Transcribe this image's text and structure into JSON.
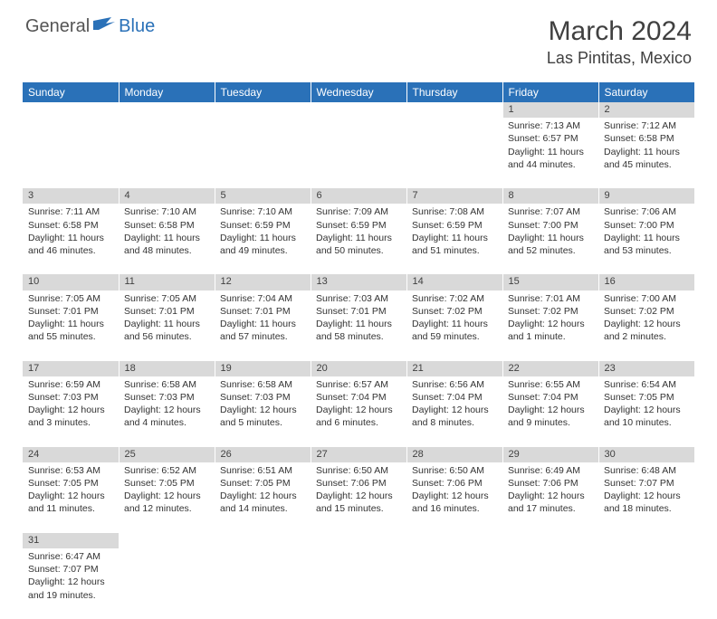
{
  "brand": {
    "part1": "General",
    "part2": "Blue"
  },
  "title": "March 2024",
  "location": "Las Pintitas, Mexico",
  "colors": {
    "header_bg": "#2a71b8",
    "header_text": "#ffffff",
    "daynum_bg": "#d9d9d9",
    "text": "#333333",
    "title_text": "#404040"
  },
  "dayHeaders": [
    "Sunday",
    "Monday",
    "Tuesday",
    "Wednesday",
    "Thursday",
    "Friday",
    "Saturday"
  ],
  "weeks": [
    [
      null,
      null,
      null,
      null,
      null,
      {
        "n": "1",
        "sr": "Sunrise: 7:13 AM",
        "ss": "Sunset: 6:57 PM",
        "dl1": "Daylight: 11 hours",
        "dl2": "and 44 minutes."
      },
      {
        "n": "2",
        "sr": "Sunrise: 7:12 AM",
        "ss": "Sunset: 6:58 PM",
        "dl1": "Daylight: 11 hours",
        "dl2": "and 45 minutes."
      }
    ],
    [
      {
        "n": "3",
        "sr": "Sunrise: 7:11 AM",
        "ss": "Sunset: 6:58 PM",
        "dl1": "Daylight: 11 hours",
        "dl2": "and 46 minutes."
      },
      {
        "n": "4",
        "sr": "Sunrise: 7:10 AM",
        "ss": "Sunset: 6:58 PM",
        "dl1": "Daylight: 11 hours",
        "dl2": "and 48 minutes."
      },
      {
        "n": "5",
        "sr": "Sunrise: 7:10 AM",
        "ss": "Sunset: 6:59 PM",
        "dl1": "Daylight: 11 hours",
        "dl2": "and 49 minutes."
      },
      {
        "n": "6",
        "sr": "Sunrise: 7:09 AM",
        "ss": "Sunset: 6:59 PM",
        "dl1": "Daylight: 11 hours",
        "dl2": "and 50 minutes."
      },
      {
        "n": "7",
        "sr": "Sunrise: 7:08 AM",
        "ss": "Sunset: 6:59 PM",
        "dl1": "Daylight: 11 hours",
        "dl2": "and 51 minutes."
      },
      {
        "n": "8",
        "sr": "Sunrise: 7:07 AM",
        "ss": "Sunset: 7:00 PM",
        "dl1": "Daylight: 11 hours",
        "dl2": "and 52 minutes."
      },
      {
        "n": "9",
        "sr": "Sunrise: 7:06 AM",
        "ss": "Sunset: 7:00 PM",
        "dl1": "Daylight: 11 hours",
        "dl2": "and 53 minutes."
      }
    ],
    [
      {
        "n": "10",
        "sr": "Sunrise: 7:05 AM",
        "ss": "Sunset: 7:01 PM",
        "dl1": "Daylight: 11 hours",
        "dl2": "and 55 minutes."
      },
      {
        "n": "11",
        "sr": "Sunrise: 7:05 AM",
        "ss": "Sunset: 7:01 PM",
        "dl1": "Daylight: 11 hours",
        "dl2": "and 56 minutes."
      },
      {
        "n": "12",
        "sr": "Sunrise: 7:04 AM",
        "ss": "Sunset: 7:01 PM",
        "dl1": "Daylight: 11 hours",
        "dl2": "and 57 minutes."
      },
      {
        "n": "13",
        "sr": "Sunrise: 7:03 AM",
        "ss": "Sunset: 7:01 PM",
        "dl1": "Daylight: 11 hours",
        "dl2": "and 58 minutes."
      },
      {
        "n": "14",
        "sr": "Sunrise: 7:02 AM",
        "ss": "Sunset: 7:02 PM",
        "dl1": "Daylight: 11 hours",
        "dl2": "and 59 minutes."
      },
      {
        "n": "15",
        "sr": "Sunrise: 7:01 AM",
        "ss": "Sunset: 7:02 PM",
        "dl1": "Daylight: 12 hours",
        "dl2": "and 1 minute."
      },
      {
        "n": "16",
        "sr": "Sunrise: 7:00 AM",
        "ss": "Sunset: 7:02 PM",
        "dl1": "Daylight: 12 hours",
        "dl2": "and 2 minutes."
      }
    ],
    [
      {
        "n": "17",
        "sr": "Sunrise: 6:59 AM",
        "ss": "Sunset: 7:03 PM",
        "dl1": "Daylight: 12 hours",
        "dl2": "and 3 minutes."
      },
      {
        "n": "18",
        "sr": "Sunrise: 6:58 AM",
        "ss": "Sunset: 7:03 PM",
        "dl1": "Daylight: 12 hours",
        "dl2": "and 4 minutes."
      },
      {
        "n": "19",
        "sr": "Sunrise: 6:58 AM",
        "ss": "Sunset: 7:03 PM",
        "dl1": "Daylight: 12 hours",
        "dl2": "and 5 minutes."
      },
      {
        "n": "20",
        "sr": "Sunrise: 6:57 AM",
        "ss": "Sunset: 7:04 PM",
        "dl1": "Daylight: 12 hours",
        "dl2": "and 6 minutes."
      },
      {
        "n": "21",
        "sr": "Sunrise: 6:56 AM",
        "ss": "Sunset: 7:04 PM",
        "dl1": "Daylight: 12 hours",
        "dl2": "and 8 minutes."
      },
      {
        "n": "22",
        "sr": "Sunrise: 6:55 AM",
        "ss": "Sunset: 7:04 PM",
        "dl1": "Daylight: 12 hours",
        "dl2": "and 9 minutes."
      },
      {
        "n": "23",
        "sr": "Sunrise: 6:54 AM",
        "ss": "Sunset: 7:05 PM",
        "dl1": "Daylight: 12 hours",
        "dl2": "and 10 minutes."
      }
    ],
    [
      {
        "n": "24",
        "sr": "Sunrise: 6:53 AM",
        "ss": "Sunset: 7:05 PM",
        "dl1": "Daylight: 12 hours",
        "dl2": "and 11 minutes."
      },
      {
        "n": "25",
        "sr": "Sunrise: 6:52 AM",
        "ss": "Sunset: 7:05 PM",
        "dl1": "Daylight: 12 hours",
        "dl2": "and 12 minutes."
      },
      {
        "n": "26",
        "sr": "Sunrise: 6:51 AM",
        "ss": "Sunset: 7:05 PM",
        "dl1": "Daylight: 12 hours",
        "dl2": "and 14 minutes."
      },
      {
        "n": "27",
        "sr": "Sunrise: 6:50 AM",
        "ss": "Sunset: 7:06 PM",
        "dl1": "Daylight: 12 hours",
        "dl2": "and 15 minutes."
      },
      {
        "n": "28",
        "sr": "Sunrise: 6:50 AM",
        "ss": "Sunset: 7:06 PM",
        "dl1": "Daylight: 12 hours",
        "dl2": "and 16 minutes."
      },
      {
        "n": "29",
        "sr": "Sunrise: 6:49 AM",
        "ss": "Sunset: 7:06 PM",
        "dl1": "Daylight: 12 hours",
        "dl2": "and 17 minutes."
      },
      {
        "n": "30",
        "sr": "Sunrise: 6:48 AM",
        "ss": "Sunset: 7:07 PM",
        "dl1": "Daylight: 12 hours",
        "dl2": "and 18 minutes."
      }
    ],
    [
      {
        "n": "31",
        "sr": "Sunrise: 6:47 AM",
        "ss": "Sunset: 7:07 PM",
        "dl1": "Daylight: 12 hours",
        "dl2": "and 19 minutes."
      },
      null,
      null,
      null,
      null,
      null,
      null
    ]
  ]
}
